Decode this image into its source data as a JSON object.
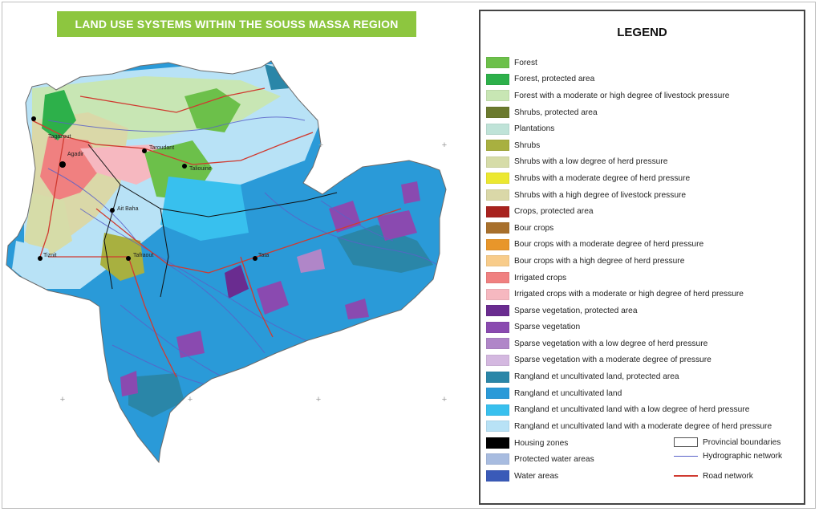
{
  "title": "LAND USE SYSTEMS WITHIN THE SOUSS MASSA REGION",
  "legend": {
    "title": "LEGEND",
    "items": [
      {
        "label": "Forest",
        "color": "#6cc04a"
      },
      {
        "label": "Forest, protected area",
        "color": "#2db04a"
      },
      {
        "label": "Forest with a moderate or high degree of livestock pressure",
        "color": "#c8e6b4"
      },
      {
        "label": "Shrubs, protected area",
        "color": "#6b7a2e"
      },
      {
        "label": "Plantations",
        "color": "#bfe3d8"
      },
      {
        "label": "Shrubs",
        "color": "#a8b040"
      },
      {
        "label": "Shrubs with a low degree of herd pressure",
        "color": "#d6dca8"
      },
      {
        "label": "Shrubs with a moderate degree of herd pressure",
        "color": "#ece830"
      },
      {
        "label": "Shrubs with a high degree of livestock pressure",
        "color": "#dad8a8"
      },
      {
        "label": "Crops, protected area",
        "color": "#a8221e"
      },
      {
        "label": "Bour crops",
        "color": "#a8702c"
      },
      {
        "label": "Bour crops with a moderate degree of herd pressure",
        "color": "#e8962a"
      },
      {
        "label": "Bour crops with a high degree of herd pressure",
        "color": "#f8cc8a"
      },
      {
        "label": "Irrigated crops",
        "color": "#f08080"
      },
      {
        "label": "Irrigated crops with a moderate or high degree of herd pressure",
        "color": "#f6b8c0"
      },
      {
        "label": "Sparse vegetation, protected area",
        "color": "#6a2c90"
      },
      {
        "label": "Sparse vegetation",
        "color": "#8a4ab0"
      },
      {
        "label": "Sparse vegetation with a low degree of herd pressure",
        "color": "#b086c8"
      },
      {
        "label": "Sparse vegetation with a moderate degree of pressure",
        "color": "#d4b8e0"
      },
      {
        "label": "Rangland et uncultivated land, protected area",
        "color": "#2a86a8"
      },
      {
        "label": "Rangland et uncultivated land",
        "color": "#2a9ad8"
      },
      {
        "label": "Rangland et uncultivated land with a low degree of herd pressure",
        "color": "#38c0ee"
      },
      {
        "label": "Rangland et uncultivated land with a moderate degree of herd pressure",
        "color": "#b8e2f6"
      }
    ],
    "extras_left": [
      {
        "label": "Housing zones",
        "color": "#000000"
      },
      {
        "label": "Protected water areas",
        "color": "#a8bce0"
      },
      {
        "label": "Water areas",
        "color": "#3a5ab8"
      }
    ],
    "extras_right": [
      {
        "label": "Provincial boundaries",
        "color": "#555555"
      },
      {
        "label": "Hydrographic network",
        "color": "#5a62c8"
      },
      {
        "label": "Road network",
        "color": "#d03a30"
      }
    ]
  },
  "map": {
    "places": [
      "Tagazout",
      "Agadir",
      "Taroudant",
      "Taliouine",
      "Ait Baha",
      "Tiznit",
      "Tafraout",
      "Tata"
    ]
  }
}
